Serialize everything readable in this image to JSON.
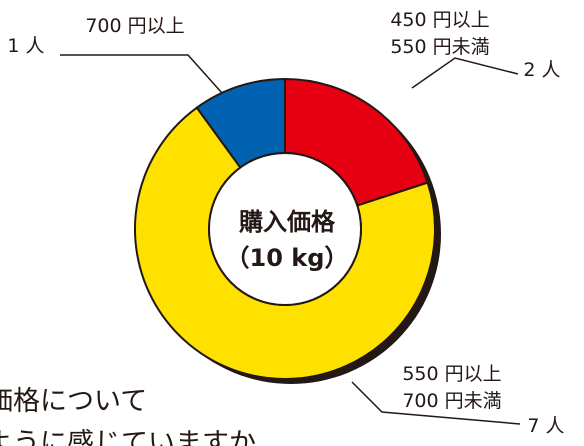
{
  "chart_data": {
    "type": "donut",
    "center_label": [
      "購入価格",
      "（10 kg）"
    ],
    "categories": [
      "450 円以上\n550 円未満",
      "550 円以上\n700 円未満",
      "700 円以上"
    ],
    "values": [
      2,
      7,
      1
    ],
    "value_labels": [
      "2 人",
      "7 人",
      "1 人"
    ],
    "colors": [
      "#e60012",
      "#ffe100",
      "#0062b1"
    ]
  },
  "background_text": [
    "価格について",
    "ように感じていますか"
  ]
}
